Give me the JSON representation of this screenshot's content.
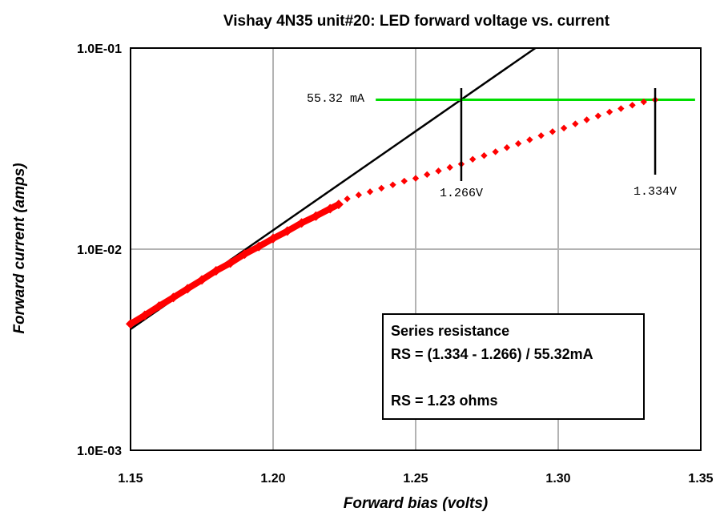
{
  "chart_data": {
    "type": "scatter",
    "title": "Vishay 4N35 unit#20:  LED forward voltage vs. current",
    "xlabel": "Forward  bias  (volts)",
    "ylabel": "Forward  current  (amps)",
    "xlim": [
      1.15,
      1.35
    ],
    "ylim": [
      0.001,
      0.1
    ],
    "yscale": "log",
    "grid": true,
    "x_ticks": [
      "1.15",
      "1.20",
      "1.25",
      "1.30",
      "1.35"
    ],
    "y_ticks": [
      "1.0E-03",
      "1.0E-02",
      "1.0E-01"
    ],
    "series": [
      {
        "color": "#ff0000",
        "marker": "diamond",
        "x": [
          1.15,
          1.155,
          1.16,
          1.165,
          1.17,
          1.175,
          1.18,
          1.185,
          1.19,
          1.195,
          1.2,
          1.205,
          1.21,
          1.215,
          1.22,
          1.223
        ],
        "y": [
          0.00425,
          0.00469,
          0.00521,
          0.00575,
          0.00636,
          0.00703,
          0.00781,
          0.00853,
          0.00945,
          0.0103,
          0.0113,
          0.0123,
          0.0135,
          0.0146,
          0.0159,
          0.0167
        ]
      },
      {
        "color": "#ff0000",
        "marker": "diamond",
        "x": [
          1.226,
          1.23,
          1.234,
          1.238,
          1.242,
          1.246,
          1.25,
          1.254,
          1.258,
          1.262,
          1.266,
          1.27,
          1.274,
          1.278,
          1.282,
          1.286,
          1.29,
          1.294,
          1.298,
          1.302,
          1.306,
          1.31,
          1.314,
          1.318,
          1.322,
          1.326,
          1.33,
          1.334
        ],
        "y": [
          0.0178,
          0.0186,
          0.0193,
          0.0201,
          0.0209,
          0.0218,
          0.0225,
          0.0235,
          0.0245,
          0.0255,
          0.0265,
          0.028,
          0.0292,
          0.0305,
          0.032,
          0.0335,
          0.035,
          0.0367,
          0.0384,
          0.04,
          0.042,
          0.044,
          0.046,
          0.0481,
          0.05,
          0.052,
          0.054,
          0.0553
        ]
      },
      {
        "color": "#000000",
        "kind": "line",
        "x": [
          1.15,
          1.292
        ],
        "y": [
          0.004,
          0.1
        ]
      },
      {
        "color": "#00dd00",
        "kind": "line",
        "x": [
          1.236,
          1.348
        ],
        "y": [
          0.05532,
          0.05532
        ]
      }
    ],
    "annotations": {
      "current_label": "55.32 mA",
      "v1_label": "1.266V",
      "v2_label": "1.334V",
      "v1_x": 1.266,
      "v2_x": 1.334,
      "marker_top_y": 0.062,
      "marker_bottom_y": 0.0185
    },
    "textbox": {
      "line1": "Series resistance",
      "line2": "RS = (1.334 - 1.266) / 55.32mA",
      "line3": "RS = 1.23 ohms"
    }
  }
}
